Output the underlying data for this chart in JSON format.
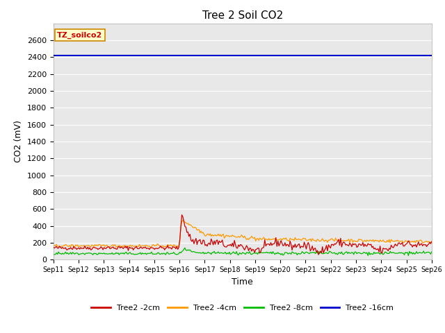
{
  "title": "Tree 2 Soil CO2",
  "ylabel": "CO2 (mV)",
  "xlabel": "Time",
  "ylim": [
    0,
    2800
  ],
  "yticks": [
    0,
    200,
    400,
    600,
    800,
    1000,
    1200,
    1400,
    1600,
    1800,
    2000,
    2200,
    2400,
    2600
  ],
  "fig_bg_color": "#ffffff",
  "plot_bg_color": "#e8e8e8",
  "annotation_text": "TZ_soilco2",
  "annotation_bg": "#ffffcc",
  "annotation_border": "#cc8800",
  "legend_labels": [
    "Tree2 -2cm",
    "Tree2 -4cm",
    "Tree2 -8cm",
    "Tree2 -16cm"
  ],
  "line_colors": [
    "#cc0000",
    "#ff9900",
    "#00bb00",
    "#0000cc"
  ],
  "x_tick_labels": [
    "Sep 11",
    "Sep 12",
    "Sep 13",
    "Sep 14",
    "Sep 15",
    "Sep 16",
    "Sep 17",
    "Sep 18",
    "Sep 19",
    "Sep 20",
    "Sep 21",
    "Sep 22",
    "Sep 23",
    "Sep 24",
    "Sep 25",
    "Sep 26"
  ],
  "n_points": 375,
  "blue_value": 2420,
  "title_fontsize": 11,
  "label_fontsize": 9,
  "tick_fontsize": 8
}
